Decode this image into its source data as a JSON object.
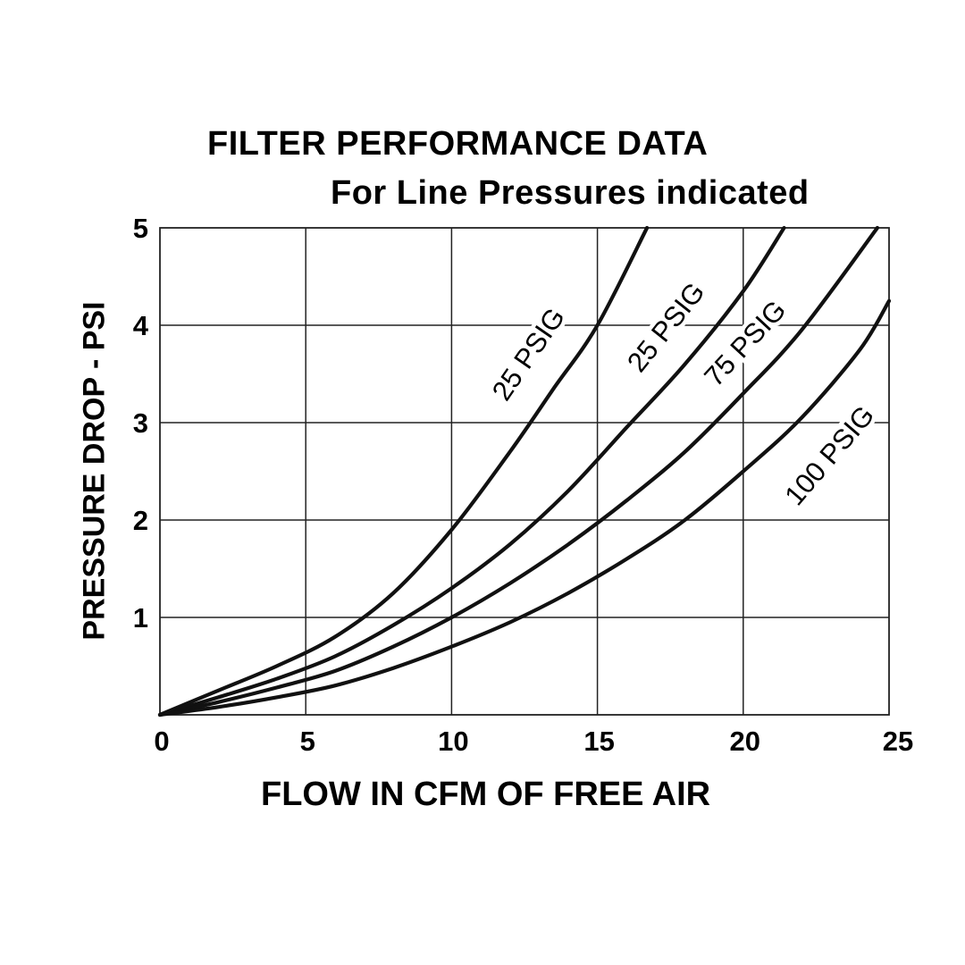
{
  "chart_data": {
    "type": "line",
    "title": "FILTER PERFORMANCE DATA",
    "subtitle": "For Line Pressures indicated",
    "xlabel": "FLOW IN CFM OF FREE AIR",
    "ylabel": "PRESSURE DROP - PSI",
    "xlim": [
      0,
      25
    ],
    "ylim": [
      0,
      5
    ],
    "x_ticks": [
      "0",
      "5",
      "10",
      "15",
      "20",
      "25"
    ],
    "y_ticks": [
      "1",
      "2",
      "3",
      "4",
      "5"
    ],
    "grid": true,
    "legend": "none (series labeled inline along curves)",
    "series": [
      {
        "name": "25 PSIG",
        "x": [
          0,
          2,
          4,
          6,
          8,
          10,
          12,
          13.5,
          15,
          16.7
        ],
        "y": [
          0,
          0.25,
          0.5,
          0.8,
          1.25,
          1.9,
          2.7,
          3.35,
          4.0,
          5.0
        ]
      },
      {
        "name": "25 PSIG",
        "x": [
          0,
          2,
          4,
          6,
          8,
          10,
          12,
          14,
          16,
          18,
          20,
          21.4
        ],
        "y": [
          0,
          0.18,
          0.37,
          0.6,
          0.92,
          1.3,
          1.75,
          2.3,
          2.95,
          3.6,
          4.35,
          5.0
        ]
      },
      {
        "name": "75 PSIG",
        "x": [
          0,
          2,
          4,
          6,
          8,
          10,
          12,
          14,
          16,
          18,
          20,
          22,
          24.6
        ],
        "y": [
          0,
          0.13,
          0.28,
          0.45,
          0.7,
          1.0,
          1.35,
          1.75,
          2.2,
          2.7,
          3.3,
          3.95,
          5.0
        ]
      },
      {
        "name": "100 PSIG",
        "x": [
          0,
          2,
          4,
          6,
          8,
          10,
          12,
          14,
          16,
          18,
          20,
          22,
          24,
          25
        ],
        "y": [
          0,
          0.08,
          0.18,
          0.3,
          0.48,
          0.7,
          0.95,
          1.25,
          1.6,
          2.0,
          2.5,
          3.05,
          3.75,
          4.25
        ]
      }
    ],
    "line_color": "#111111",
    "grid_color": "#222222"
  }
}
